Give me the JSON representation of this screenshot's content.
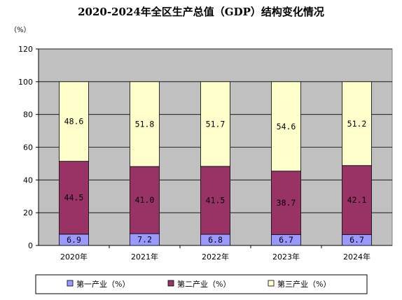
{
  "chart_data": {
    "type": "bar",
    "stacked": true,
    "title": "2020-2024年全区生产总值（GDP）结构变化情况",
    "unit": "（%）",
    "categories": [
      "2020年",
      "2021年",
      "2022年",
      "2023年",
      "2024年"
    ],
    "ylim": [
      0,
      120
    ],
    "yticks": [
      0,
      20,
      40,
      60,
      80,
      100,
      120
    ],
    "grid": true,
    "legend_position": "bottom",
    "plot_background": "#c0c0c0",
    "series": [
      {
        "name": "第一产业（%）",
        "color": "#9999ff",
        "values": [
          6.9,
          7.2,
          6.8,
          6.7,
          6.7
        ],
        "labels": [
          "6.9",
          "7.2",
          "6.8",
          "6.7",
          "6.7"
        ]
      },
      {
        "name": "第二产业（%）",
        "color": "#993366",
        "values": [
          44.5,
          41.0,
          41.5,
          38.7,
          42.1
        ],
        "labels": [
          "44.5",
          "41.0",
          "41.5",
          "38.7",
          "42.1"
        ]
      },
      {
        "name": "第三产业（%）",
        "color": "#ffffcc",
        "values": [
          48.6,
          51.8,
          51.7,
          54.6,
          51.2
        ],
        "labels": [
          "48.6",
          "51.8",
          "51.7",
          "54.6",
          "51.2"
        ]
      }
    ]
  }
}
